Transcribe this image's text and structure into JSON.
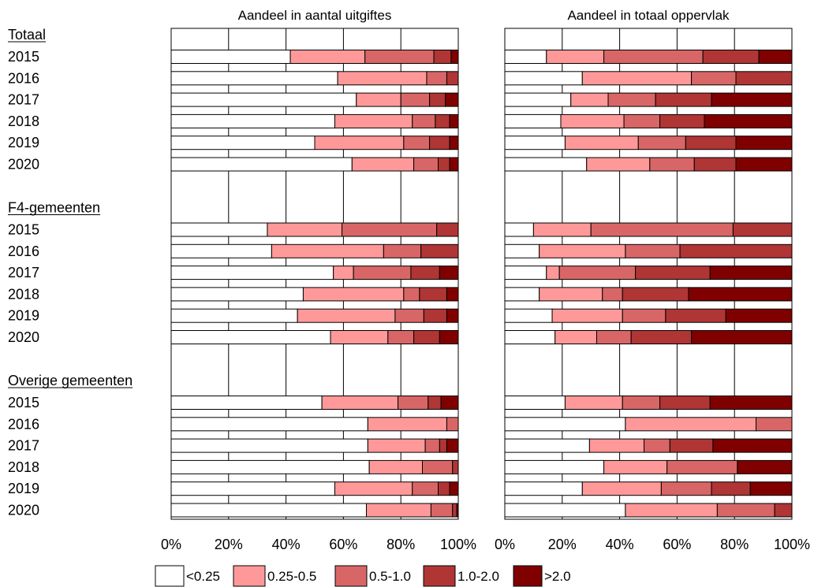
{
  "chart_data": {
    "type": "bar",
    "orientation": "horizontal",
    "stacked": "percent",
    "xlim": [
      0,
      100
    ],
    "x_ticks": [
      "0%",
      "20%",
      "40%",
      "60%",
      "80%",
      "100%"
    ],
    "grid": true,
    "legend_position": "bottom",
    "colors": [
      "#ffffff",
      "#ff9999",
      "#d96666",
      "#b03535",
      "#800000"
    ],
    "legend": [
      "<0.25",
      "0.25-0.5",
      "0.5-1.0",
      "1.0-2.0",
      ">2.0"
    ],
    "groups": [
      {
        "label": "Totaal",
        "years": [
          "2015",
          "2016",
          "2017",
          "2018",
          "2019",
          "2020"
        ]
      },
      {
        "label": "F4-gemeenten",
        "years": [
          "2015",
          "2016",
          "2017",
          "2018",
          "2019",
          "2020"
        ]
      },
      {
        "label": "Overige gemeenten",
        "years": [
          "2015",
          "2016",
          "2017",
          "2018",
          "2019",
          "2020"
        ]
      }
    ],
    "panels": [
      {
        "title": "Aandeel in aantal uitgiftes",
        "rows": [
          [
            41.5,
            26,
            24,
            6,
            2.5
          ],
          [
            58,
            31,
            7,
            4,
            0
          ],
          [
            64.5,
            15.5,
            10,
            5.5,
            4.5
          ],
          [
            57,
            27,
            8,
            5,
            3
          ],
          [
            50,
            31,
            9,
            7,
            3
          ],
          [
            63,
            21.5,
            8.5,
            4,
            3
          ],
          [
            33.5,
            26,
            33,
            7.5,
            0
          ],
          [
            35,
            39,
            13,
            13,
            0
          ],
          [
            56.5,
            7,
            20,
            10,
            6.5
          ],
          [
            46,
            35,
            5.5,
            9.5,
            4
          ],
          [
            44,
            34,
            10,
            8,
            4
          ],
          [
            55.5,
            20,
            9,
            9,
            6.5
          ],
          [
            52.5,
            26.5,
            10.5,
            4.5,
            6
          ],
          [
            68.5,
            27.5,
            4,
            0,
            0
          ],
          [
            68.5,
            20,
            5,
            2.5,
            4
          ],
          [
            69,
            18.5,
            10.5,
            2,
            0
          ],
          [
            57,
            27,
            9,
            4,
            3
          ],
          [
            68,
            22.5,
            7.5,
            1.5,
            0.5
          ]
        ]
      },
      {
        "title": "Aandeel in totaal oppervlak",
        "rows": [
          [
            14.5,
            20,
            34.5,
            19.5,
            11.5
          ],
          [
            27,
            38,
            15.5,
            19.5,
            0
          ],
          [
            23,
            13,
            16.5,
            19.5,
            28
          ],
          [
            19.5,
            22,
            12.5,
            15.5,
            30.5
          ],
          [
            21,
            25.5,
            16.5,
            17.5,
            19.5
          ],
          [
            28.5,
            22,
            15.5,
            14.5,
            19.5
          ],
          [
            10,
            20,
            49.5,
            20.5,
            0
          ],
          [
            12,
            30,
            19,
            39,
            0
          ],
          [
            14.5,
            4.5,
            26.5,
            26,
            28.5
          ],
          [
            12,
            22,
            7,
            23,
            36
          ],
          [
            16.5,
            24.5,
            15,
            21,
            23
          ],
          [
            17.5,
            14.5,
            12,
            21,
            35
          ],
          [
            21,
            20,
            13,
            17.5,
            28.5
          ],
          [
            42,
            45.5,
            12.5,
            0,
            0
          ],
          [
            29.5,
            19,
            9,
            15,
            27.5
          ],
          [
            34.5,
            22,
            24.5,
            0,
            19
          ],
          [
            27,
            27.5,
            17.5,
            13.5,
            14.5
          ],
          [
            42,
            32,
            20,
            6,
            0
          ]
        ]
      }
    ]
  }
}
